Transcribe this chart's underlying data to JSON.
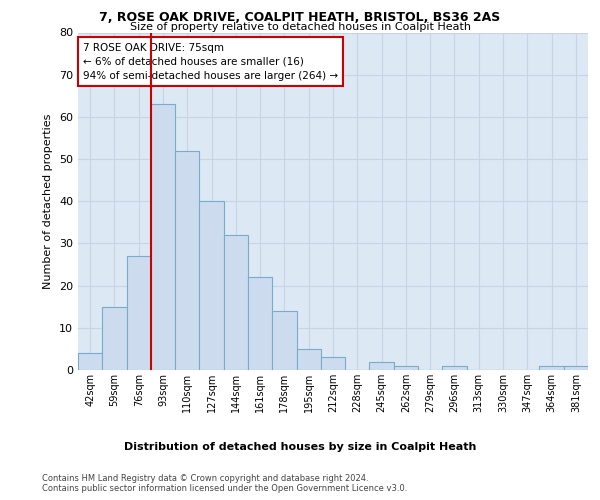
{
  "title1": "7, ROSE OAK DRIVE, COALPIT HEATH, BRISTOL, BS36 2AS",
  "title2": "Size of property relative to detached houses in Coalpit Heath",
  "xlabel": "Distribution of detached houses by size in Coalpit Heath",
  "ylabel": "Number of detached properties",
  "categories": [
    "42sqm",
    "59sqm",
    "76sqm",
    "93sqm",
    "110sqm",
    "127sqm",
    "144sqm",
    "161sqm",
    "178sqm",
    "195sqm",
    "212sqm",
    "228sqm",
    "245sqm",
    "262sqm",
    "279sqm",
    "296sqm",
    "313sqm",
    "330sqm",
    "347sqm",
    "364sqm",
    "381sqm"
  ],
  "values": [
    4,
    15,
    27,
    63,
    52,
    40,
    32,
    22,
    14,
    5,
    3,
    0,
    2,
    1,
    0,
    1,
    0,
    0,
    0,
    1,
    1
  ],
  "bar_color": "#ccdcee",
  "bar_edgecolor": "#7aabcc",
  "highlight_line_color": "#cc0000",
  "ylim": [
    0,
    80
  ],
  "yticks": [
    0,
    10,
    20,
    30,
    40,
    50,
    60,
    70,
    80
  ],
  "annotation_title": "7 ROSE OAK DRIVE: 75sqm",
  "annotation_line1": "← 6% of detached houses are smaller (16)",
  "annotation_line2": "94% of semi-detached houses are larger (264) →",
  "annotation_box_color": "#cc0000",
  "footer1": "Contains HM Land Registry data © Crown copyright and database right 2024.",
  "footer2": "Contains public sector information licensed under the Open Government Licence v3.0.",
  "grid_color": "#c8d4e4",
  "bg_color": "#dce8f4"
}
